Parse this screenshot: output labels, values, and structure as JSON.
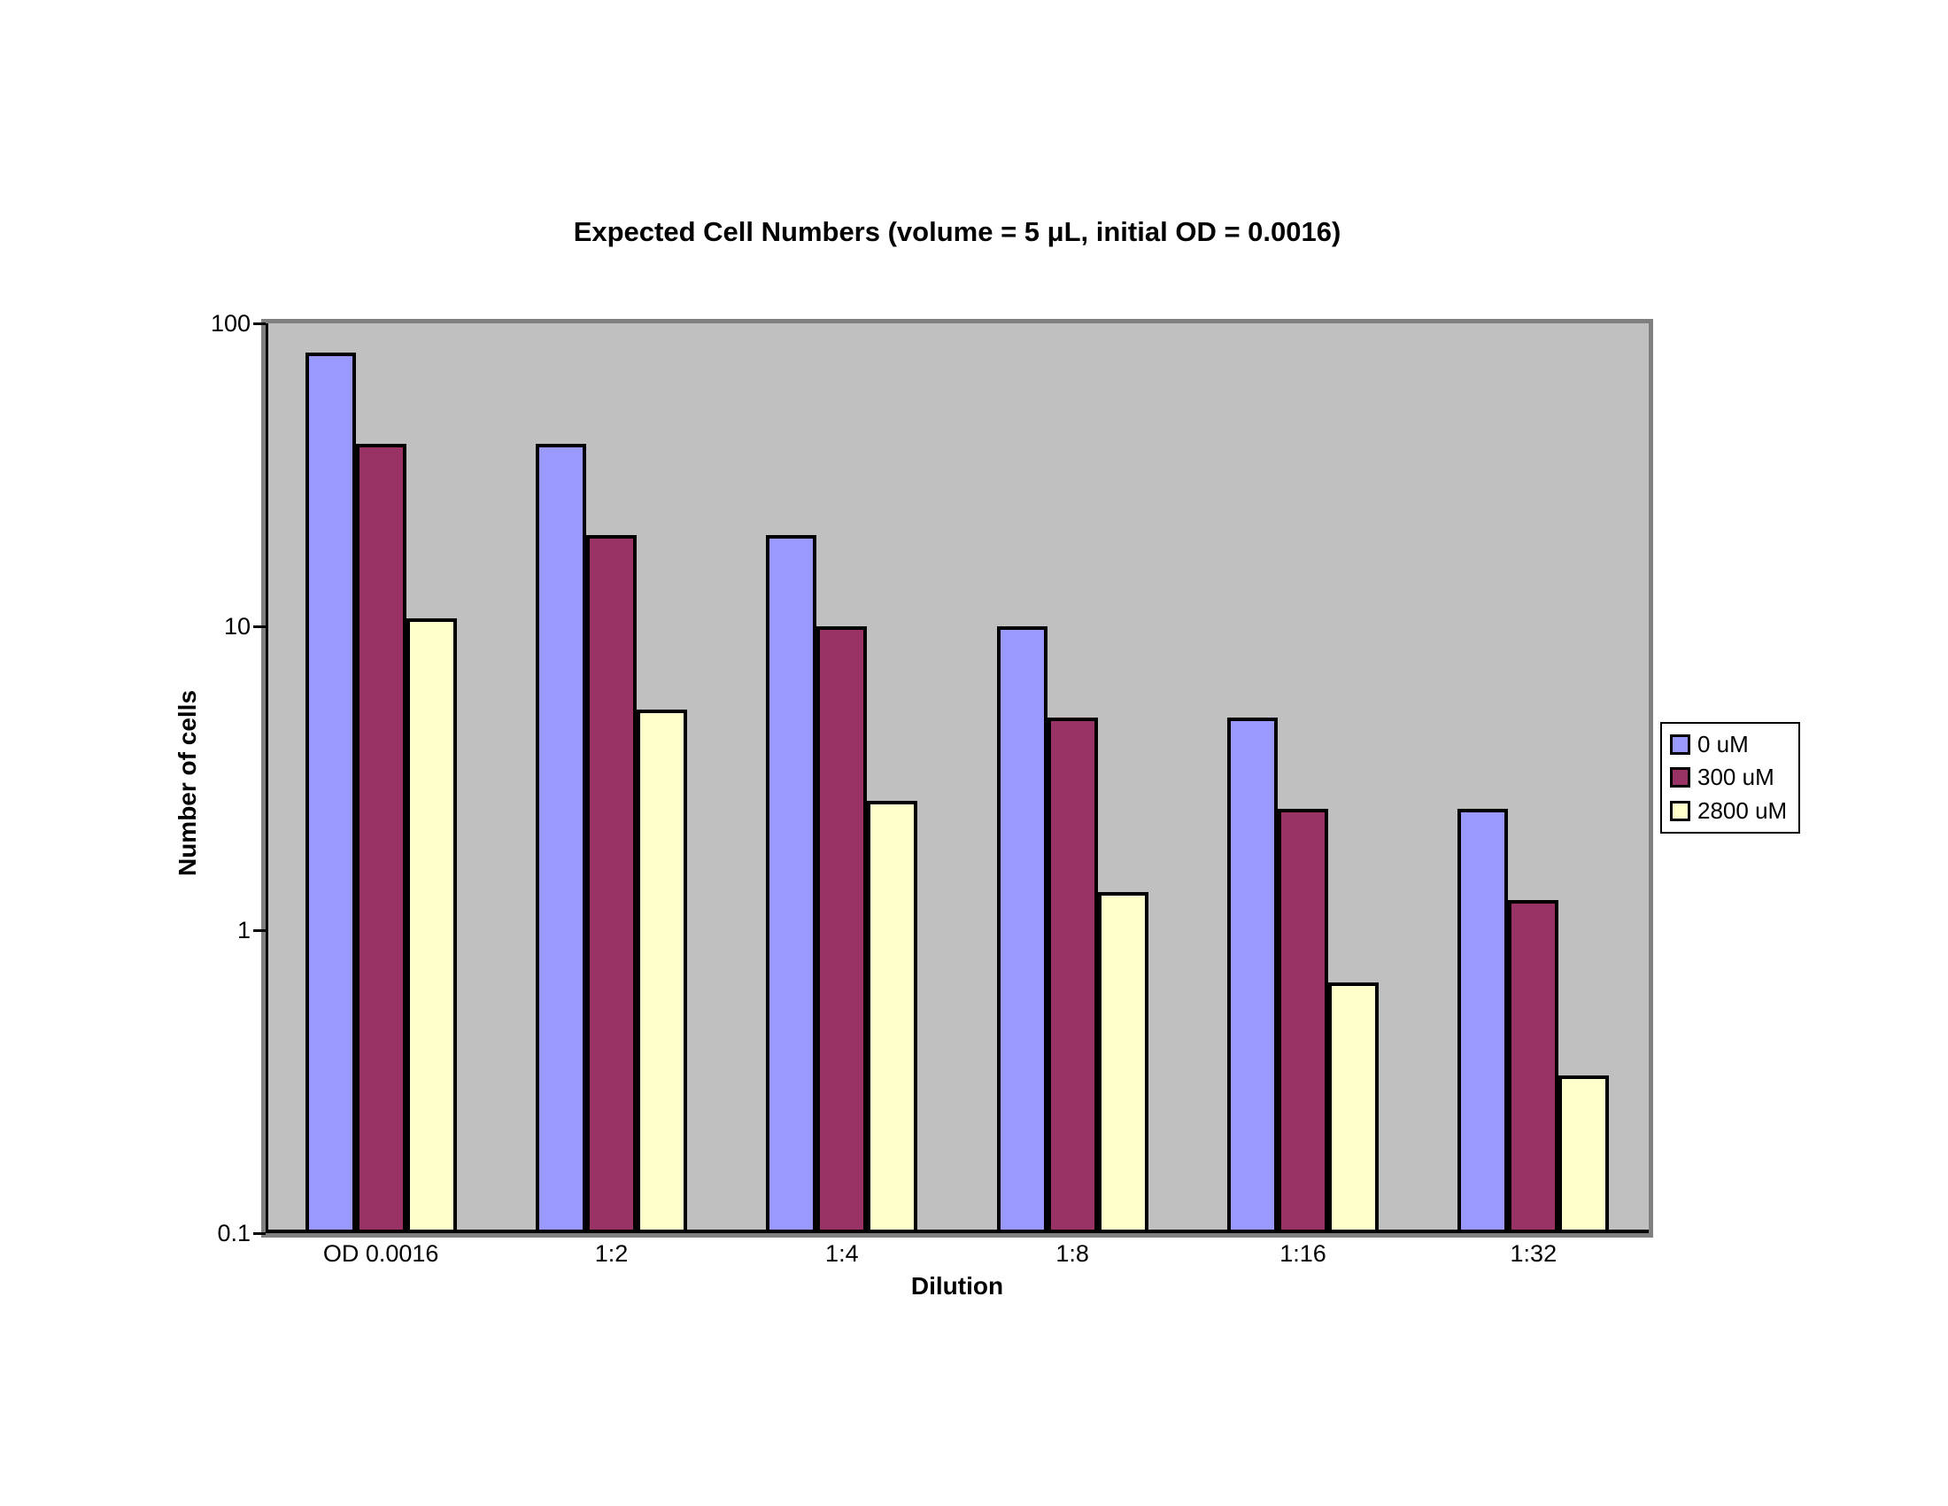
{
  "chart": {
    "title": "Expected Cell Numbers (volume = 5 μL, initial OD = 0.0016)",
    "x_axis_title": "Dilution",
    "y_axis_title": "Number of cells"
  },
  "chart_data": {
    "type": "bar",
    "title": "Expected Cell Numbers (volume = 5 μL, initial OD = 0.0016)",
    "xlabel": "Dilution",
    "ylabel": "Number of cells",
    "y_scale": "log",
    "ylim": [
      0.1,
      100
    ],
    "y_ticks": [
      100,
      10,
      1,
      0.1
    ],
    "y_tick_labels": [
      "100",
      "10",
      "1",
      "0.1"
    ],
    "categories": [
      "OD 0.0016",
      "1:2",
      "1:4",
      "1:8",
      "1:16",
      "1:32"
    ],
    "series": [
      {
        "name": "0 uM",
        "color": "#9999FF",
        "values": [
          80,
          40,
          20,
          10,
          5,
          2.5
        ]
      },
      {
        "name": "300 uM",
        "color": "#993366",
        "values": [
          40,
          20,
          10,
          5,
          2.5,
          1.25
        ]
      },
      {
        "name": "2800 uM",
        "color": "#FFFFCC",
        "values": [
          10.67,
          5.33,
          2.67,
          1.33,
          0.67,
          0.33
        ]
      }
    ],
    "legend_position": "right",
    "grid": false,
    "plot_background": "#C0C0C0",
    "plot_border_color": "#808080",
    "bar_border_color": "#000000"
  }
}
